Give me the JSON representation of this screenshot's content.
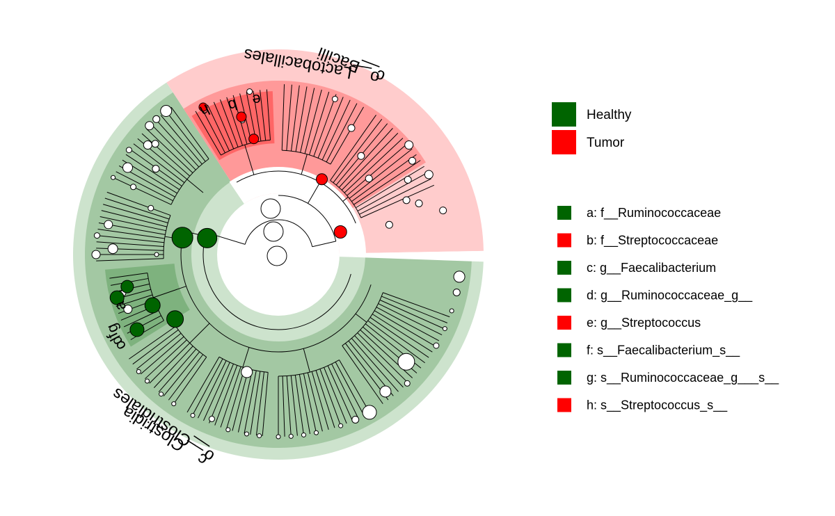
{
  "colors": {
    "healthy": "#006400",
    "tumor": "#ff0000",
    "healthy_outer": "#cde3cd",
    "healthy_mid": "#a3c8a3",
    "healthy_inner": "#7eb27e",
    "tumor_outer": "#ffcccc",
    "tumor_mid": "#ff9999",
    "tumor_inner": "#ff6666",
    "inner_ring": "#cfe2cf",
    "branch": "#000000",
    "node_plain": "#ffffff"
  },
  "legend_groups": [
    {
      "label": "Healthy",
      "color": "#006400"
    },
    {
      "label": "Tumor",
      "color": "#ff0000"
    }
  ],
  "legend_features": [
    {
      "label": "a: f__Ruminococcaceae",
      "group": "healthy"
    },
    {
      "label": "b: f__Streptococcaceae",
      "group": "tumor"
    },
    {
      "label": "c: g__Faecalibacterium",
      "group": "healthy"
    },
    {
      "label": "d: g__Ruminococcaceae_g__",
      "group": "healthy"
    },
    {
      "label": "e: g__Streptococcus",
      "group": "tumor"
    },
    {
      "label": "f: s__Faecalibacterium_s__",
      "group": "healthy"
    },
    {
      "label": "g: s__Ruminococcaceae_g___s__",
      "group": "healthy"
    },
    {
      "label": "h: s__Streptococcus_s__",
      "group": "tumor"
    }
  ],
  "clade_labels": {
    "class_tumor": "c__Bacilli",
    "order_tumor": "o__Lactobacillales",
    "class_healthy": "c__Clostridia",
    "order_healthy": "o__Clostridiales",
    "b": "b",
    "e": "e",
    "h": "h",
    "a": "a",
    "c": "c",
    "d": "d",
    "f": "f",
    "g": "g"
  }
}
